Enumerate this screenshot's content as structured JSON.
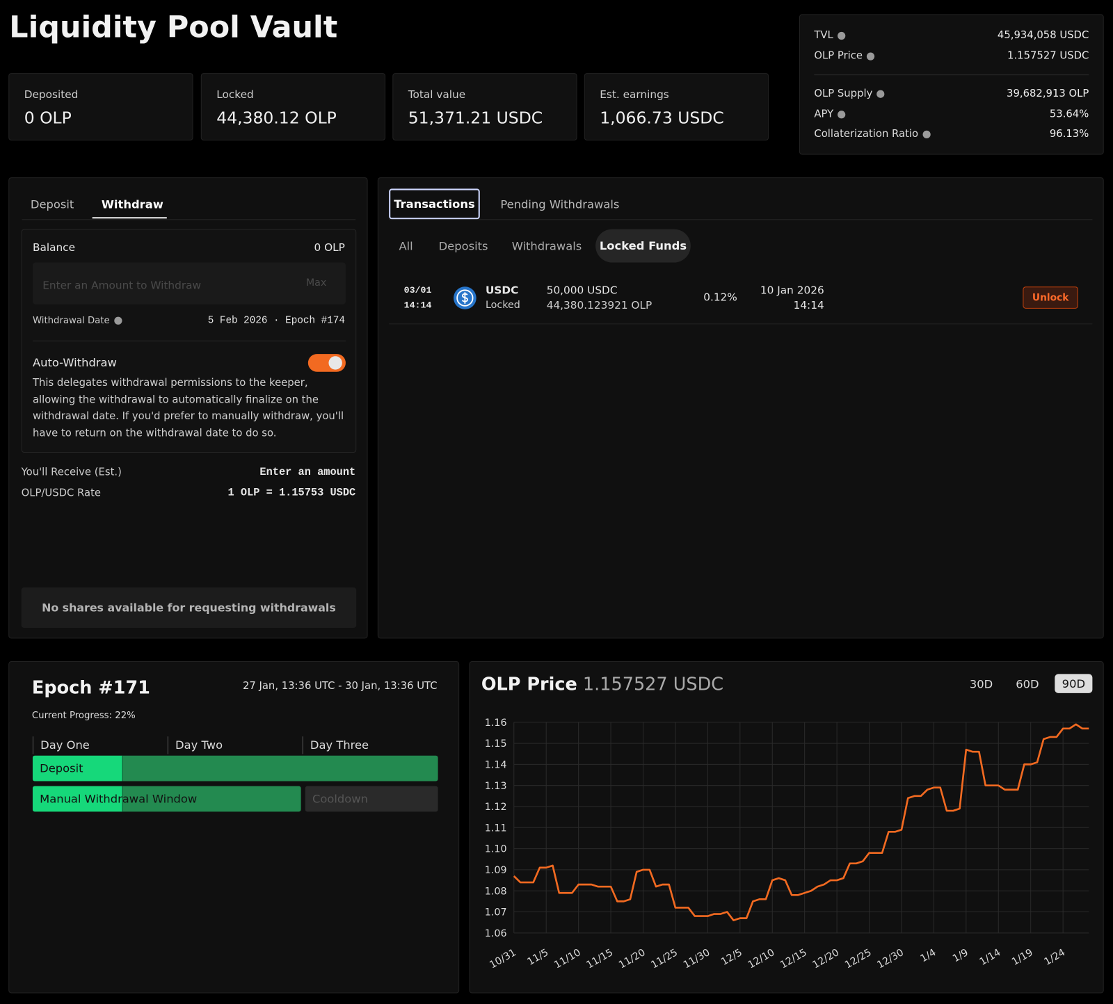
{
  "header": {
    "title": "Liquidity Pool Vault"
  },
  "stats": [
    {
      "label": "Deposited",
      "value": "0 OLP"
    },
    {
      "label": "Locked",
      "value": "44,380.12 OLP"
    },
    {
      "label": "Total value",
      "value": "51,371.21 USDC"
    },
    {
      "label": "Est. earnings",
      "value": "1,066.73 USDC"
    }
  ],
  "info": {
    "groups": [
      [
        {
          "label": "TVL",
          "value": "45,934,058 USDC"
        },
        {
          "label": "OLP Price",
          "value": "1.157527 USDC"
        }
      ],
      [
        {
          "label": "OLP Supply",
          "value": "39,682,913 OLP"
        },
        {
          "label": "APY",
          "value": "53.64%"
        },
        {
          "label": "Collaterization Ratio",
          "value": "96.13%"
        }
      ]
    ]
  },
  "withdraw_panel": {
    "tabs": [
      "Deposit",
      "Withdraw"
    ],
    "balance_label": "Balance",
    "balance": "0 OLP",
    "input_placeholder": "Enter an Amount to Withdraw",
    "max": "Max",
    "withdrawal_date_label": "Withdrawal Date",
    "withdrawal_date": "5 Feb 2026 · Epoch #174",
    "auto_withdraw_label": "Auto-Withdraw",
    "auto_withdraw_description": "This delegates withdrawal permissions to the keeper, allowing the withdrawal to automatically finalize on the withdrawal date. If you'd prefer to manually withdraw, you'll have to return on the withdrawal date to do so.",
    "receive_label": "You'll Receive (Est.)",
    "receive_value": "Enter an amount",
    "rate_label": "OLP/USDC Rate",
    "rate_value": "1 OLP = 1.15753 USDC",
    "button": "No shares available for requesting withdrawals"
  },
  "transactions_panel": {
    "tabs": [
      "Transactions",
      "Pending Withdrawals"
    ],
    "filters": [
      "All",
      "Deposits",
      "Withdrawals",
      "Locked Funds"
    ],
    "rows": [
      {
        "date": "03/01",
        "time": "14:14",
        "asset": "USDC",
        "status": "Locked",
        "amount": "50,000 USDC",
        "shares": "44,380.123921 OLP",
        "fee": "0.12%",
        "unlock_date": "10 Jan 2026",
        "unlock_time": "14:14",
        "action": "Unlock"
      }
    ]
  },
  "epoch": {
    "title": "Epoch #171",
    "range": "27 Jan, 13:36 UTC - 30 Jan, 13:36 UTC",
    "progress": {
      "label": "Current Progress:",
      "value": 22,
      "value_label": "22%"
    },
    "days": [
      "Day One",
      "Day Two",
      "Day Three"
    ],
    "phases": [
      "Deposit",
      "Manual Withdrawal Window",
      "Cooldown"
    ]
  },
  "chart_data": {
    "type": "line",
    "title": "OLP Price",
    "subtitle": "1.157527 USDC",
    "ranges": [
      "30D",
      "60D",
      "90D"
    ],
    "color": "#f26a21",
    "grid": true,
    "categories": [
      "10/31",
      null,
      null,
      null,
      null,
      "11/5",
      null,
      null,
      null,
      null,
      "11/10",
      null,
      null,
      null,
      null,
      "11/15",
      null,
      null,
      null,
      null,
      "11/20",
      null,
      null,
      null,
      null,
      "11/25",
      null,
      null,
      null,
      null,
      "11/30",
      null,
      null,
      null,
      null,
      "12/5",
      null,
      null,
      null,
      null,
      "12/10",
      null,
      null,
      null,
      null,
      "12/15",
      null,
      null,
      null,
      null,
      "12/20",
      null,
      null,
      null,
      null,
      "12/25",
      null,
      null,
      null,
      null,
      "12/30",
      null,
      null,
      null,
      null,
      "1/4",
      null,
      null,
      null,
      null,
      "1/9",
      null,
      null,
      null,
      null,
      "1/14",
      null,
      null,
      null,
      null,
      "1/19",
      null,
      null,
      null,
      null,
      "1/24",
      null,
      null,
      null,
      null
    ],
    "values": [
      1.087,
      1.084,
      1.084,
      1.084,
      1.091,
      1.091,
      1.092,
      1.079,
      1.079,
      1.079,
      1.083,
      1.083,
      1.083,
      1.082,
      1.082,
      1.082,
      1.075,
      1.075,
      1.076,
      1.089,
      1.09,
      1.09,
      1.082,
      1.083,
      1.083,
      1.072,
      1.072,
      1.072,
      1.068,
      1.068,
      1.068,
      1.069,
      1.069,
      1.07,
      1.066,
      1.067,
      1.067,
      1.075,
      1.076,
      1.076,
      1.085,
      1.086,
      1.085,
      1.078,
      1.078,
      1.079,
      1.08,
      1.082,
      1.083,
      1.085,
      1.085,
      1.086,
      1.093,
      1.093,
      1.094,
      1.098,
      1.098,
      1.098,
      1.108,
      1.108,
      1.109,
      1.124,
      1.125,
      1.125,
      1.128,
      1.129,
      1.129,
      1.118,
      1.118,
      1.119,
      1.147,
      1.146,
      1.146,
      1.13,
      1.13,
      1.13,
      1.128,
      1.128,
      1.128,
      1.14,
      1.14,
      1.141,
      1.152,
      1.153,
      1.153,
      1.157,
      1.157,
      1.159,
      1.157,
      1.157
    ],
    "ylim": [
      1.06,
      1.16
    ],
    "yticks": [
      1.06,
      1.07,
      1.08,
      1.09,
      {
        "value": 1.1,
        "label": "1.10"
      },
      1.11,
      1.12,
      1.13,
      1.14,
      1.15,
      1.16
    ]
  }
}
